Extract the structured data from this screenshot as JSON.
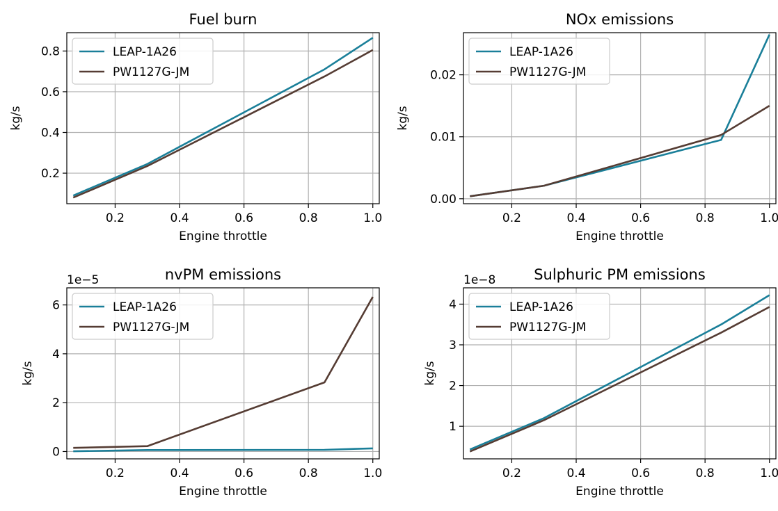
{
  "chart_data": [
    {
      "type": "line",
      "title": "Fuel burn",
      "xlabel": "Engine throttle",
      "ylabel": "kg/s",
      "offset_label": "",
      "xlim": [
        0.05,
        1.02
      ],
      "ylim": [
        0.05,
        0.89
      ],
      "xticks": [
        0.2,
        0.4,
        0.6,
        0.8,
        1.0
      ],
      "xtick_labels": [
        "0.2",
        "0.4",
        "0.6",
        "0.8",
        "1.0"
      ],
      "yticks": [
        0.2,
        0.4,
        0.6,
        0.8
      ],
      "ytick_labels": [
        "0.2",
        "0.4",
        "0.6",
        "0.8"
      ],
      "grid": true,
      "legend_position": "upper left",
      "series": [
        {
          "name": "LEAP-1A26",
          "color": "#1a7f99",
          "x": [
            0.07,
            0.3,
            0.85,
            1.0
          ],
          "y": [
            0.09,
            0.245,
            0.71,
            0.865
          ]
        },
        {
          "name": "PW1127G-JM",
          "color": "#553c33",
          "x": [
            0.07,
            0.3,
            0.85,
            1.0
          ],
          "y": [
            0.08,
            0.235,
            0.675,
            0.805
          ]
        }
      ]
    },
    {
      "type": "line",
      "title": "NOx emissions",
      "xlabel": "Engine throttle",
      "ylabel": "kg/s",
      "offset_label": "",
      "xlim": [
        0.05,
        1.02
      ],
      "ylim": [
        -0.0008,
        0.0268
      ],
      "xticks": [
        0.2,
        0.4,
        0.6,
        0.8,
        1.0
      ],
      "xtick_labels": [
        "0.2",
        "0.4",
        "0.6",
        "0.8",
        "1.0"
      ],
      "yticks": [
        0.0,
        0.01,
        0.02
      ],
      "ytick_labels": [
        "0.00",
        "0.01",
        "0.02"
      ],
      "grid": true,
      "legend_position": "upper left",
      "series": [
        {
          "name": "LEAP-1A26",
          "color": "#1a7f99",
          "x": [
            0.07,
            0.3,
            0.85,
            1.0
          ],
          "y": [
            0.0004,
            0.0021,
            0.0095,
            0.0265
          ]
        },
        {
          "name": "PW1127G-JM",
          "color": "#553c33",
          "x": [
            0.07,
            0.3,
            0.85,
            1.0
          ],
          "y": [
            0.0004,
            0.0021,
            0.0103,
            0.015
          ]
        }
      ]
    },
    {
      "type": "line",
      "title": "nvPM emissions",
      "xlabel": "Engine throttle",
      "ylabel": "kg/s",
      "offset_label": "1e−5",
      "xlim": [
        0.05,
        1.02
      ],
      "ylim": [
        -0.3,
        6.7
      ],
      "xticks": [
        0.2,
        0.4,
        0.6,
        0.8,
        1.0
      ],
      "xtick_labels": [
        "0.2",
        "0.4",
        "0.6",
        "0.8",
        "1.0"
      ],
      "yticks": [
        0,
        2,
        4,
        6
      ],
      "ytick_labels": [
        "0",
        "2",
        "4",
        "6"
      ],
      "grid": true,
      "legend_position": "upper left",
      "series": [
        {
          "name": "LEAP-1A26",
          "color": "#1a7f99",
          "x": [
            0.07,
            0.3,
            0.85,
            1.0
          ],
          "y": [
            0.01,
            0.06,
            0.07,
            0.13
          ]
        },
        {
          "name": "PW1127G-JM",
          "color": "#553c33",
          "x": [
            0.07,
            0.3,
            0.85,
            1.0
          ],
          "y": [
            0.15,
            0.22,
            2.83,
            6.33
          ]
        }
      ]
    },
    {
      "type": "line",
      "title": "Sulphuric PM emissions",
      "xlabel": "Engine throttle",
      "ylabel": "kg/s",
      "offset_label": "1e−8",
      "xlim": [
        0.05,
        1.02
      ],
      "ylim": [
        0.2,
        4.4
      ],
      "xticks": [
        0.2,
        0.4,
        0.6,
        0.8,
        1.0
      ],
      "xtick_labels": [
        "0.2",
        "0.4",
        "0.6",
        "0.8",
        "1.0"
      ],
      "yticks": [
        1,
        2,
        3,
        4
      ],
      "ytick_labels": [
        "1",
        "2",
        "3",
        "4"
      ],
      "grid": true,
      "legend_position": "upper left",
      "series": [
        {
          "name": "LEAP-1A26",
          "color": "#1a7f99",
          "x": [
            0.07,
            0.3,
            0.85,
            1.0
          ],
          "y": [
            0.43,
            1.2,
            3.5,
            4.22
          ]
        },
        {
          "name": "PW1127G-JM",
          "color": "#553c33",
          "x": [
            0.07,
            0.3,
            0.85,
            1.0
          ],
          "y": [
            0.38,
            1.15,
            3.3,
            3.93
          ]
        }
      ]
    }
  ]
}
